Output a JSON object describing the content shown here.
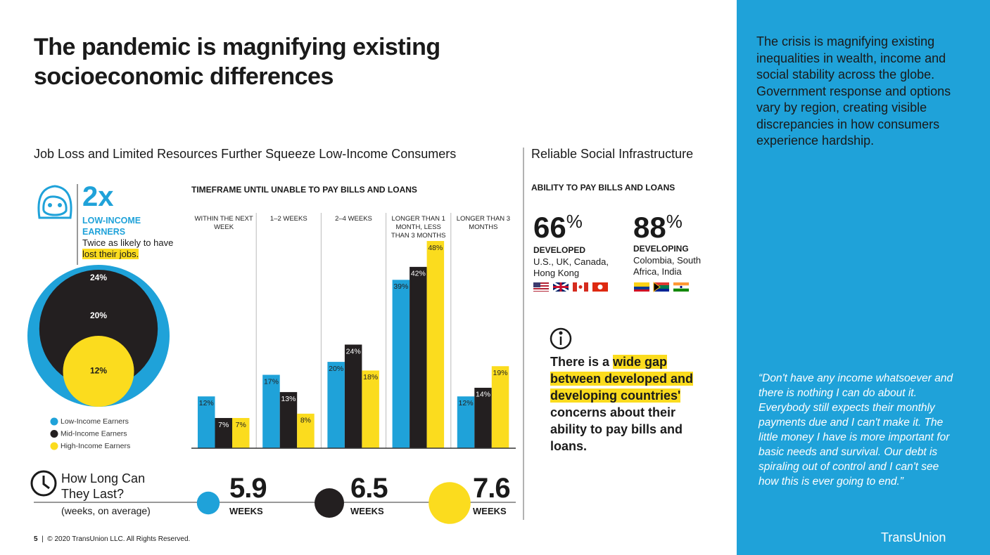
{
  "title": "The pandemic is magnifying existing socioeconomic differences",
  "left_heading": "Job Loss and Limited Resources Further Squeeze Low-Income Consumers",
  "stat": {
    "value": "2x",
    "label": "LOW-INCOME EARNERS",
    "text": "Twice as likely to have ",
    "highlight": "lost their jobs."
  },
  "circles": {
    "values": [
      24,
      20,
      12
    ],
    "value_labels": [
      "24%",
      "20%",
      "12%"
    ]
  },
  "chart_data": {
    "type": "bar",
    "title": "TIMEFRAME UNTIL UNABLE TO PAY BILLS AND LOANS",
    "categories": [
      "WITHIN THE NEXT WEEK",
      "1–2 WEEKS",
      "2–4 WEEKS",
      "LONGER THAN 1 MONTH, LESS THAN 3 MONTHS",
      "LONGER THAN 3 MONTHS"
    ],
    "series": [
      {
        "name": "Low-Income Earners",
        "color": "#1fa2d9",
        "values": [
          12,
          17,
          20,
          39,
          12
        ],
        "value_labels": [
          "12%",
          "17%",
          "20%",
          "39%",
          "12%"
        ]
      },
      {
        "name": "Mid-Income Earners",
        "color": "#231f20",
        "values": [
          7,
          13,
          24,
          42,
          14
        ],
        "value_labels": [
          "7%",
          "13%",
          "24%",
          "42%",
          "14%"
        ]
      },
      {
        "name": "High-Income Earners",
        "color": "#fbdc1e",
        "values": [
          7,
          8,
          18,
          48,
          19
        ],
        "value_labels": [
          "7%",
          "8%",
          "18%",
          "48%",
          "19%"
        ]
      }
    ],
    "ylim": [
      0,
      55
    ]
  },
  "how_long": {
    "title": "How Long Can They Last?",
    "subtitle": "(weeks, on average)",
    "values": [
      5.9,
      6.5,
      7.6
    ],
    "unit": "WEEKS"
  },
  "right_heading": "Reliable Social Infrastructure",
  "right_subheading": "ABILITY TO PAY BILLS AND LOANS",
  "stats": [
    {
      "value": 66,
      "unit": "%",
      "label": "DEVELOPED",
      "countries": "U.S., UK, Canada, Hong Kong"
    },
    {
      "value": 88,
      "unit": "%",
      "label": "DEVELOPING",
      "countries": "Colombia, South Africa, India"
    }
  ],
  "note": {
    "before": "There is a ",
    "highlight": "wide gap between developed and developing countries'",
    "after": " concerns about their ability to pay bills and loans."
  },
  "sidebar": {
    "text": "The crisis is magnifying existing inequalities in wealth, income and social stability across the globe. Government response and options vary by region, creating visible discrepancies in how consumers experience hardship.",
    "quote": "“Don't have any income whatsoever and there is nothing I can do about it. Everybody still expects their monthly payments due and I can't make it. The little money I have is more important for basic needs and survival. Our debt is spiraling out of control and I can't see how this is ever going to end.”"
  },
  "footer": {
    "page": "5",
    "separator": "|",
    "copyright": "© 2020 TransUnion LLC. All Rights Reserved."
  },
  "logo": "TransUnion"
}
